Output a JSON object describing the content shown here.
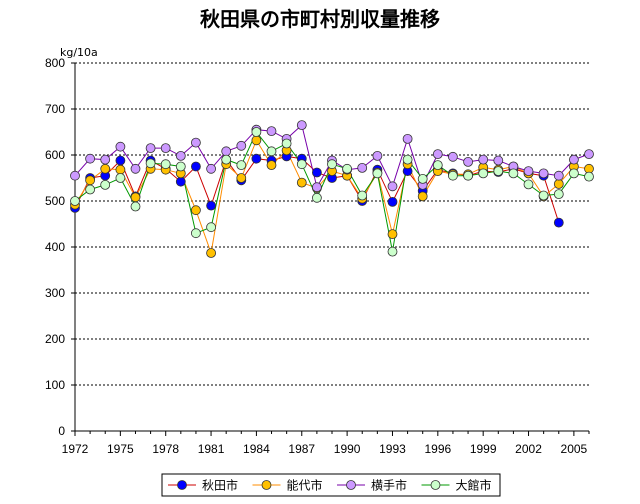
{
  "chart_data": {
    "type": "line",
    "title": "秋田県の市町村別収量推移",
    "ylabel": "kg/10a",
    "ylim": [
      0,
      800
    ],
    "yticks": [
      "0",
      "100",
      "200",
      "300",
      "400",
      "500",
      "600",
      "700",
      "800"
    ],
    "xlim": [
      1972,
      2006
    ],
    "xticks": [
      "1972",
      "1975",
      "1978",
      "1981",
      "1984",
      "1987",
      "1990",
      "1993",
      "1996",
      "1999",
      "2002",
      "2005"
    ],
    "x": [
      1972,
      1973,
      1974,
      1975,
      1976,
      1977,
      1978,
      1979,
      1980,
      1981,
      1982,
      1983,
      1984,
      1985,
      1986,
      1987,
      1988,
      1989,
      1990,
      1991,
      1992,
      1993,
      1994,
      1995,
      1996,
      1997,
      1998,
      1999,
      2000,
      2001,
      2002,
      2003,
      2004,
      2005,
      2006
    ],
    "series": [
      {
        "name": "秋田市",
        "color": "#0000ff",
        "line": "#cc0000",
        "values": [
          485,
          550,
          555,
          588,
          510,
          588,
          570,
          542,
          575,
          490,
          590,
          545,
          592,
          588,
          597,
          592,
          562,
          550,
          555,
          500,
          568,
          498,
          565,
          522,
          568,
          560,
          555,
          565,
          563,
          570,
          560,
          555,
          453,
          null,
          null
        ]
      },
      {
        "name": "能代市",
        "color": "#ffc000",
        "line": "#ff8c00",
        "values": [
          492,
          545,
          570,
          568,
          508,
          570,
          568,
          560,
          480,
          387,
          580,
          550,
          632,
          578,
          610,
          540,
          528,
          565,
          555,
          505,
          562,
          428,
          580,
          510,
          565,
          558,
          558,
          573,
          568,
          575,
          560,
          510,
          537,
          575,
          570
        ]
      },
      {
        "name": "横手市",
        "color": "#cc99ff",
        "line": "#7700aa",
        "values": [
          555,
          592,
          590,
          618,
          570,
          615,
          615,
          598,
          627,
          570,
          608,
          620,
          655,
          652,
          635,
          665,
          530,
          588,
          568,
          572,
          598,
          532,
          635,
          535,
          602,
          596,
          585,
          590,
          588,
          575,
          565,
          560,
          555,
          590,
          602
        ]
      },
      {
        "name": "大館市",
        "color": "#ccffcc",
        "line": "#009900",
        "values": [
          500,
          525,
          535,
          550,
          488,
          582,
          580,
          575,
          430,
          443,
          590,
          578,
          650,
          608,
          625,
          580,
          507,
          580,
          570,
          512,
          560,
          390,
          590,
          548,
          578,
          555,
          555,
          560,
          565,
          560,
          536,
          512,
          515,
          560,
          553
        ]
      }
    ]
  }
}
